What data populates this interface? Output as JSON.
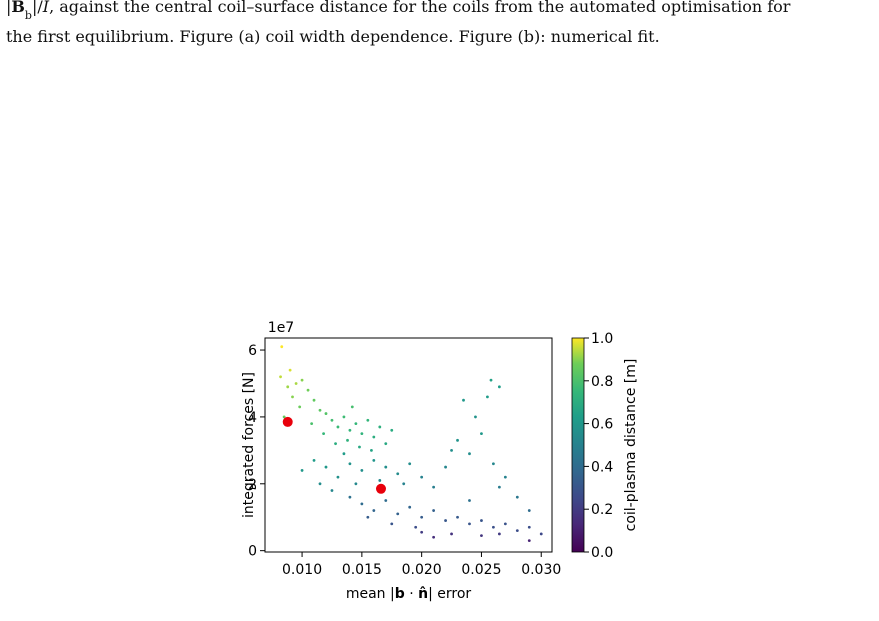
{
  "caption": {
    "line1_parts": [
      "|",
      "B",
      "b",
      "|/",
      "I",
      ", against the central coil–surface distance for the coils from the automated optimisation for"
    ],
    "line2": "the first equilibrium. Figure (a) coil width dependence. Figure (b): numerical fit."
  },
  "chart_data": {
    "type": "scatter",
    "xlabel_parts": [
      "mean |",
      "b",
      " · ",
      "n̂",
      "| error"
    ],
    "ylabel": "integrated forces [N]",
    "y_offset_label": "1e7",
    "xlim": [
      0.0069,
      0.0309
    ],
    "ylim": [
      -0.04,
      6.36
    ],
    "xticks": [
      {
        "value": 0.01,
        "label": "0.010"
      },
      {
        "value": 0.015,
        "label": "0.015"
      },
      {
        "value": 0.02,
        "label": "0.020"
      },
      {
        "value": 0.025,
        "label": "0.025"
      },
      {
        "value": 0.03,
        "label": "0.030"
      }
    ],
    "yticks": [
      0,
      2,
      4,
      6
    ],
    "colormap": "viridis",
    "colorbar": {
      "label": "coil-plasma distance [m]",
      "clim": [
        0,
        1
      ],
      "ticks": [
        {
          "value": 0,
          "label": "0.0"
        },
        {
          "value": 0.2,
          "label": "0.2"
        },
        {
          "value": 0.4,
          "label": "0.4"
        },
        {
          "value": 0.6,
          "label": "0.6"
        },
        {
          "value": 0.8,
          "label": "0.8"
        },
        {
          "value": 1,
          "label": "1.0"
        }
      ]
    },
    "series": [
      {
        "x": [
          0.0083,
          0.0082,
          0.009,
          0.0088,
          0.0095,
          0.01,
          0.0105,
          0.0092,
          0.0098,
          0.011,
          0.0115,
          0.0085,
          0.012,
          0.0125,
          0.013,
          0.0135,
          0.014,
          0.0145,
          0.0138,
          0.015,
          0.0155,
          0.016,
          0.0128,
          0.0118,
          0.0165,
          0.017,
          0.0148,
          0.0175,
          0.0108,
          0.0142,
          0.0158,
          0.01,
          0.011,
          0.012,
          0.013,
          0.014,
          0.015,
          0.016,
          0.017,
          0.018,
          0.019,
          0.0135,
          0.0145,
          0.0165,
          0.0185,
          0.02,
          0.021,
          0.0115,
          0.0125,
          0.014,
          0.015,
          0.016,
          0.017,
          0.018,
          0.019,
          0.02,
          0.021,
          0.022,
          0.023,
          0.024,
          0.025,
          0.026,
          0.027,
          0.028,
          0.029,
          0.03,
          0.0155,
          0.0175,
          0.0195,
          0.021,
          0.0225,
          0.025,
          0.0265,
          0.029,
          0.02,
          0.023,
          0.024,
          0.025,
          0.0255,
          0.0258,
          0.0265,
          0.0235,
          0.0245,
          0.026,
          0.027,
          0.022,
          0.0225,
          0.028,
          0.0265,
          0.024,
          0.029
        ],
        "values": [
          6.1,
          5.2,
          5.4,
          4.9,
          5.0,
          5.1,
          4.8,
          4.6,
          4.3,
          4.5,
          4.2,
          4.0,
          4.1,
          3.9,
          3.7,
          4.0,
          3.6,
          3.8,
          3.3,
          3.5,
          3.9,
          3.4,
          3.2,
          3.5,
          3.7,
          3.2,
          3.1,
          3.6,
          3.8,
          4.3,
          3.0,
          2.4,
          2.7,
          2.5,
          2.2,
          2.6,
          2.4,
          2.7,
          2.5,
          2.3,
          2.6,
          2.9,
          2.0,
          2.1,
          2.0,
          2.2,
          1.9,
          2.0,
          1.8,
          1.6,
          1.4,
          1.2,
          1.5,
          1.1,
          1.3,
          1.0,
          1.2,
          0.9,
          1.0,
          0.8,
          0.9,
          0.7,
          0.8,
          0.6,
          0.7,
          0.5,
          1.0,
          0.8,
          0.7,
          0.4,
          0.5,
          0.45,
          0.5,
          0.3,
          0.55,
          3.3,
          2.9,
          3.5,
          4.6,
          5.1,
          4.9,
          4.5,
          4.0,
          2.6,
          2.2,
          2.5,
          3.0,
          1.6,
          1.9,
          1.5,
          1.2
        ],
        "color_values": [
          1.0,
          0.95,
          0.97,
          0.92,
          0.93,
          0.9,
          0.88,
          0.9,
          0.87,
          0.85,
          0.84,
          0.86,
          0.82,
          0.78,
          0.76,
          0.77,
          0.74,
          0.75,
          0.72,
          0.73,
          0.74,
          0.7,
          0.7,
          0.75,
          0.71,
          0.68,
          0.68,
          0.69,
          0.8,
          0.79,
          0.66,
          0.6,
          0.62,
          0.6,
          0.57,
          0.58,
          0.56,
          0.59,
          0.56,
          0.54,
          0.55,
          0.62,
          0.53,
          0.53,
          0.5,
          0.5,
          0.48,
          0.55,
          0.52,
          0.42,
          0.4,
          0.37,
          0.4,
          0.35,
          0.37,
          0.33,
          0.35,
          0.31,
          0.32,
          0.3,
          0.3,
          0.28,
          0.29,
          0.27,
          0.27,
          0.25,
          0.33,
          0.3,
          0.27,
          0.15,
          0.17,
          0.18,
          0.2,
          0.12,
          0.2,
          0.58,
          0.55,
          0.6,
          0.62,
          0.65,
          0.63,
          0.6,
          0.58,
          0.52,
          0.5,
          0.52,
          0.56,
          0.45,
          0.47,
          0.42,
          0.4
        ]
      },
      {
        "color": "#e8000b",
        "x": [
          0.0088,
          0.0166
        ],
        "values": [
          3.85,
          1.85
        ]
      }
    ]
  }
}
